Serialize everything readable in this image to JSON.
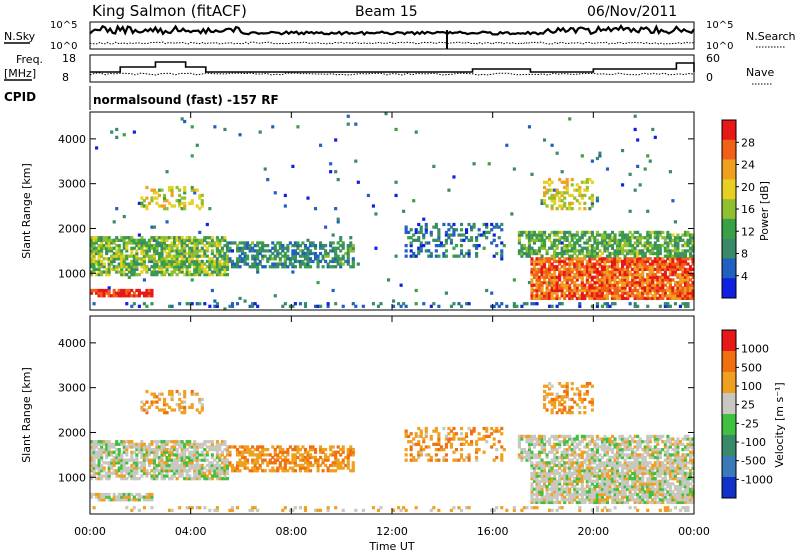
{
  "header": {
    "station": "King Salmon (fitACF)",
    "beam": "Beam 15",
    "date": "06/Nov/2011"
  },
  "top_panels": {
    "nsky_label": "N.Sky",
    "nsky_tick_hi": "10^5",
    "nsky_tick_lo": "10^0",
    "nsearch_label": "N.Search",
    "nsearch_tick_hi": "10^5",
    "nsearch_tick_lo": "10^0",
    "freq_label_1": "Freq.",
    "freq_label_2": "[MHz]",
    "freq_tick_hi": "18",
    "freq_tick_lo": "8",
    "nave_label": "Nave",
    "nave_tick_hi": "60",
    "nave_tick_lo": "0",
    "cpid_label": "CPID",
    "cpid_text": "normalsound (fast) -157 RF"
  },
  "chart_data": [
    {
      "type": "heatmap",
      "name": "power",
      "ylabel": "Slant Range [km]",
      "xlabel": "",
      "xlim": [
        "00:00",
        "00:00"
      ],
      "ylim": [
        180,
        4600
      ],
      "yticks": [
        1000,
        2000,
        3000,
        4000
      ],
      "colorbar": {
        "label": "Power [dB]",
        "ticks": [
          "4",
          "8",
          "12",
          "16",
          "20",
          "24",
          "28"
        ],
        "colors": [
          "#1020e0",
          "#2060c0",
          "#3a8a6a",
          "#3aa048",
          "#90c030",
          "#e8d020",
          "#f0a020",
          "#f06018",
          "#e81818"
        ]
      }
    },
    {
      "type": "heatmap",
      "name": "velocity",
      "ylabel": "Slant Range [km]",
      "xlabel": "Time UT",
      "xticks": [
        "00:00",
        "04:00",
        "08:00",
        "12:00",
        "16:00",
        "20:00",
        "00:00"
      ],
      "ylim": [
        180,
        4600
      ],
      "yticks": [
        1000,
        2000,
        3000,
        4000
      ],
      "colorbar": {
        "label": "Velocity [m s⁻¹]",
        "ticks": [
          "1000",
          "500",
          "100",
          "25",
          "-25",
          "-100",
          "-500",
          "-1000"
        ],
        "colors": [
          "#1030c8",
          "#3a7ab8",
          "#3a8a6a",
          "#40c040",
          "#c8c8c0",
          "#f0a020",
          "#f07010",
          "#e81818"
        ]
      }
    }
  ]
}
